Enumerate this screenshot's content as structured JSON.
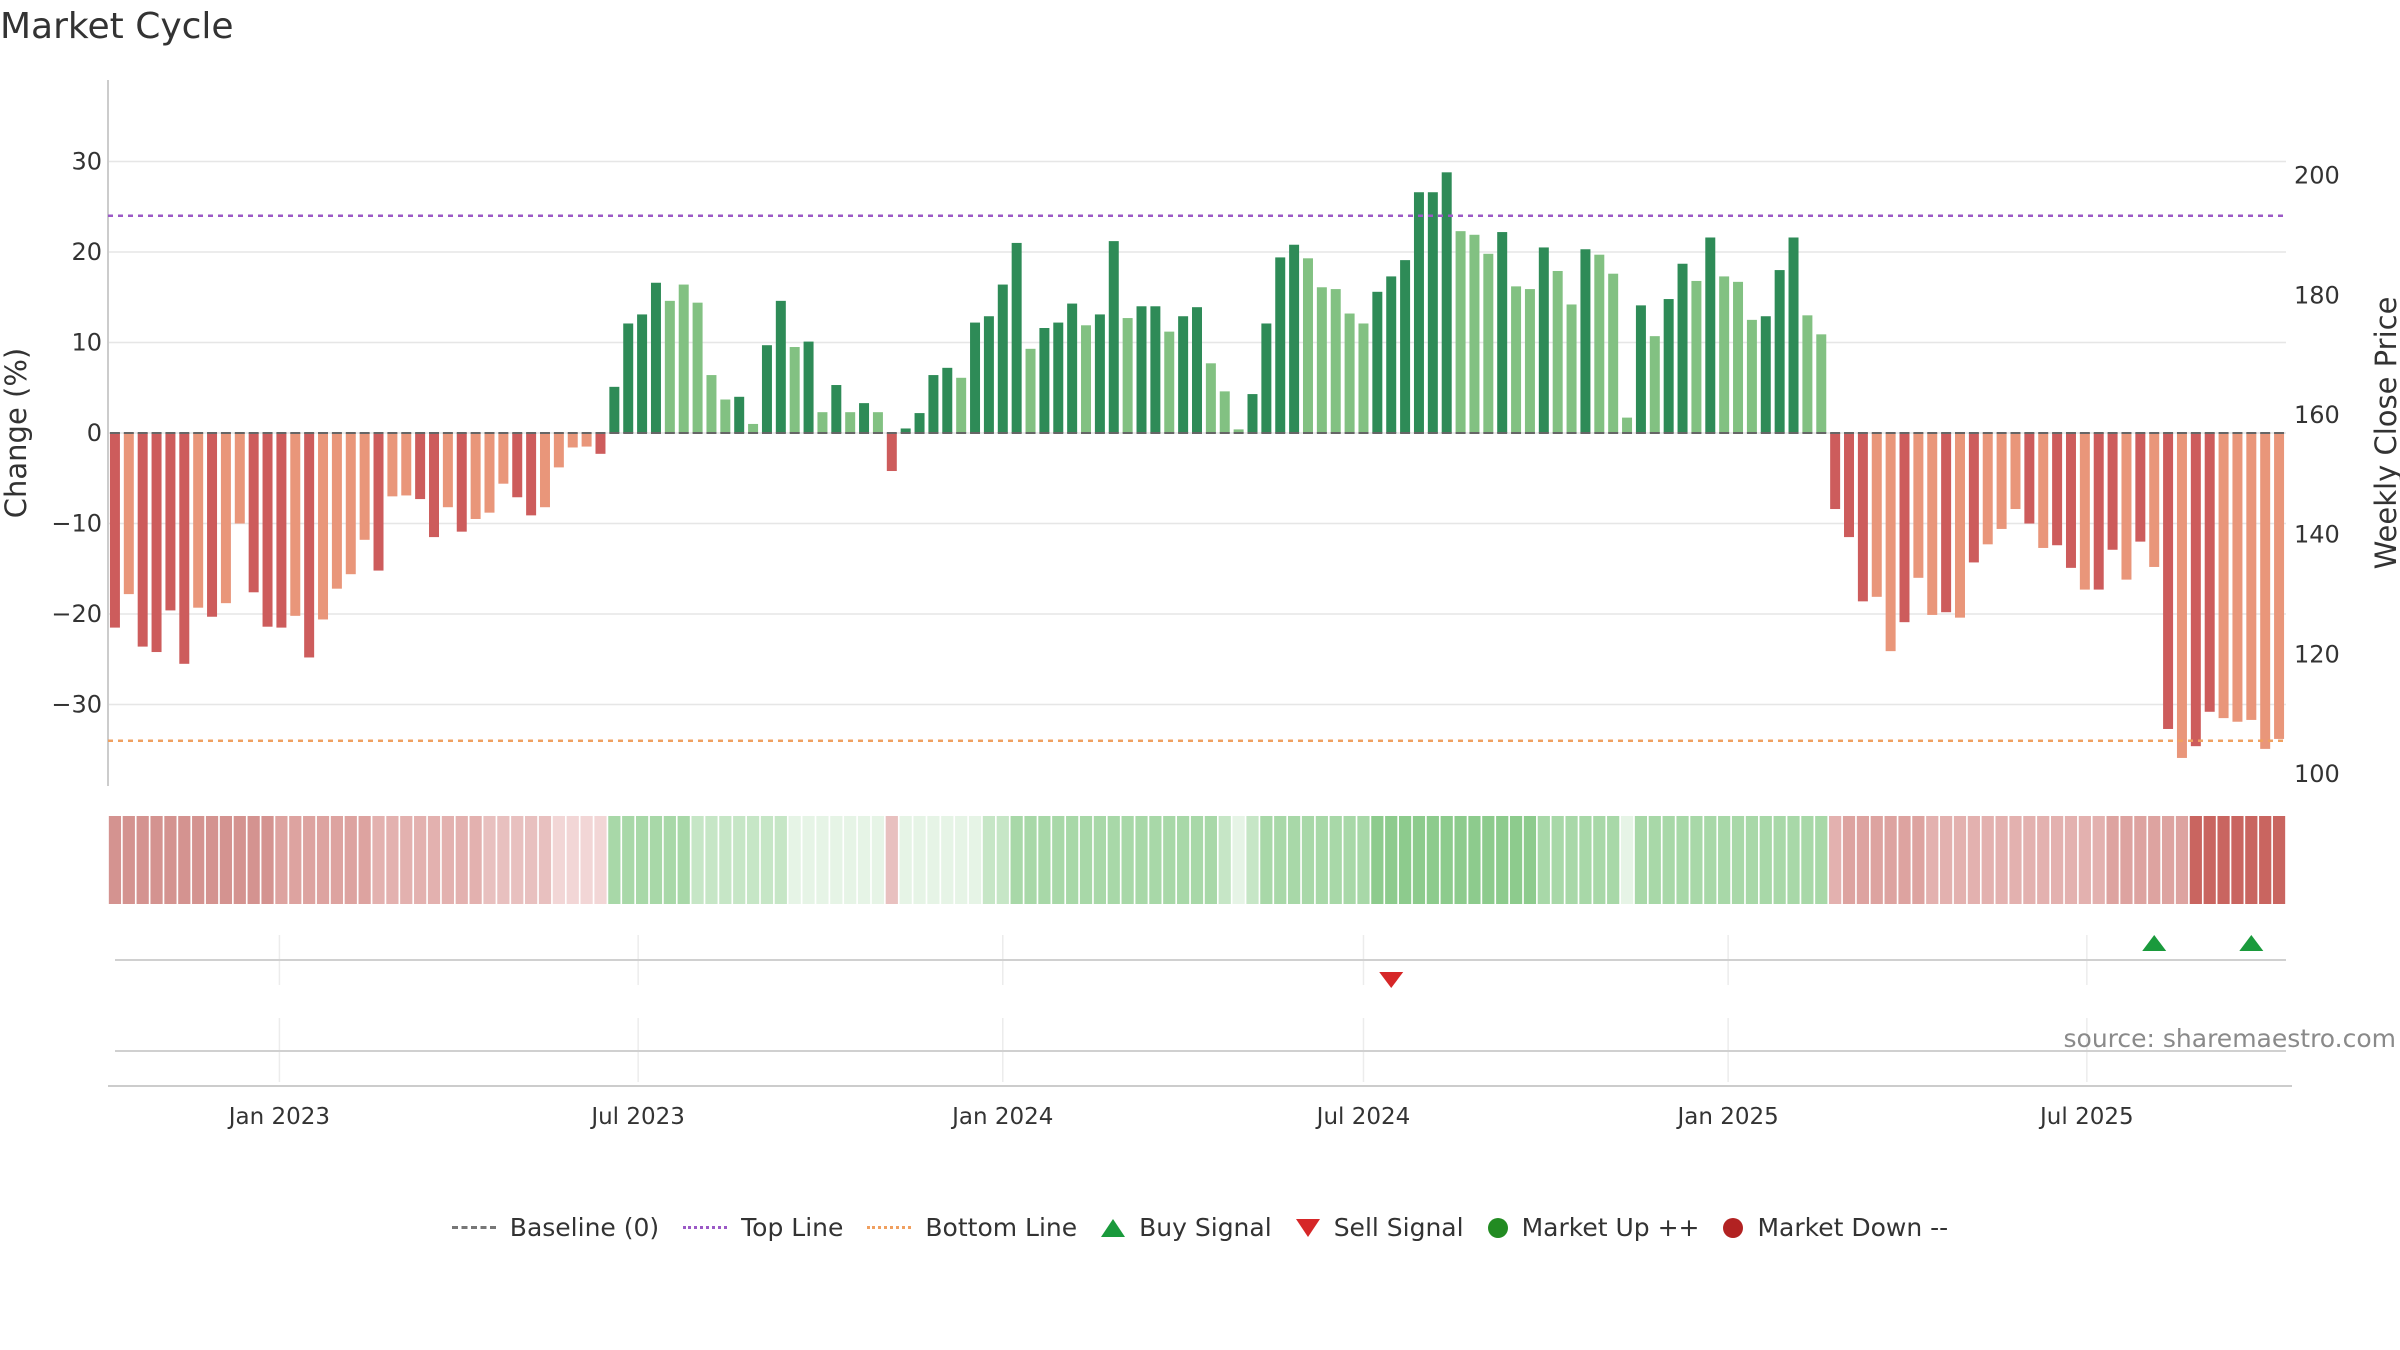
{
  "title": "Market Cycle",
  "source": "source: sharemaestro.com",
  "legend": [
    {
      "label": "Baseline (0)",
      "icon": "dash-gray",
      "name": "legend-baseline"
    },
    {
      "label": "Top Line",
      "icon": "dotted-purple",
      "name": "legend-top-line"
    },
    {
      "label": "Bottom Line",
      "icon": "dotted-orange",
      "name": "legend-bottom-line"
    },
    {
      "label": "Buy Signal",
      "icon": "triangle-up-green",
      "name": "legend-buy-signal"
    },
    {
      "label": "Sell Signal",
      "icon": "triangle-down-red",
      "name": "legend-sell-signal"
    },
    {
      "label": "Market Up ++",
      "icon": "circle-green",
      "name": "legend-market-up"
    },
    {
      "label": "Market Down --",
      "icon": "circle-red",
      "name": "legend-market-down"
    }
  ],
  "colors": {
    "dark_green": "#2e8b57",
    "light_green": "#82c182",
    "dark_red": "#cd5c5c",
    "light_red": "#e9967a",
    "top_line": "#9b59c6",
    "bottom_line": "#f0a060",
    "buy": "#1a9a3c",
    "sell": "#d62728",
    "grid": "#e6e6e6",
    "axis": "#cccccc"
  },
  "chart_data": {
    "type": "bar",
    "ylabel": "Change (%)",
    "ylabel_right": "Weekly Close Price",
    "ylim": [
      -39,
      39
    ],
    "yticks": [
      30,
      20,
      10,
      0,
      -10,
      -20,
      -30
    ],
    "ytick_labels": [
      "30",
      "20",
      "10",
      "0",
      "−10",
      "−20",
      "−30"
    ],
    "ylim_right": [
      98,
      216
    ],
    "yticks_right": [
      200,
      180,
      160,
      140,
      120,
      100
    ],
    "x_start": "2022-10-10",
    "x_step_days": 7,
    "xticks": [
      "Jan 2023",
      "Jul 2023",
      "Jan 2024",
      "Jul 2024",
      "Jan 2025",
      "Jul 2025"
    ],
    "xtick_dates": [
      "2023-01-01",
      "2023-07-01",
      "2024-01-01",
      "2024-07-01",
      "2025-01-01",
      "2025-07-01"
    ],
    "top_line": 24,
    "bottom_line": -34,
    "grid": true,
    "legend_position": "bottom",
    "values": [
      -21.5,
      -17.8,
      -23.6,
      -24.2,
      -19.6,
      -25.5,
      -19.3,
      -20.3,
      -18.8,
      -10.0,
      -17.6,
      -21.4,
      -21.5,
      -20.2,
      -24.8,
      -20.6,
      -17.2,
      -15.6,
      -11.8,
      -15.2,
      -7.0,
      -6.9,
      -7.3,
      -11.5,
      -8.2,
      -10.9,
      -9.5,
      -8.8,
      -5.6,
      -7.1,
      -9.1,
      -8.2,
      -3.8,
      -1.6,
      -1.5,
      -2.3,
      5.1,
      12.1,
      13.1,
      16.6,
      14.6,
      16.4,
      14.4,
      6.4,
      3.7,
      4.0,
      1.0,
      9.7,
      14.6,
      9.5,
      10.1,
      2.3,
      5.3,
      2.3,
      3.3,
      2.3,
      -4.2,
      0.5,
      2.2,
      6.4,
      7.2,
      6.1,
      12.2,
      12.9,
      16.4,
      21.0,
      9.3,
      11.6,
      12.2,
      14.3,
      11.9,
      13.1,
      21.2,
      12.7,
      14.0,
      14.0,
      11.2,
      12.9,
      13.9,
      7.7,
      4.6,
      0.4,
      4.3,
      12.1,
      19.4,
      20.8,
      19.3,
      16.1,
      15.9,
      13.2,
      12.1,
      15.6,
      17.3,
      19.1,
      26.6,
      26.6,
      28.8,
      22.3,
      21.9,
      19.8,
      22.2,
      16.2,
      15.9,
      20.5,
      17.9,
      14.2,
      20.3,
      19.7,
      17.6,
      1.7,
      14.1,
      10.7,
      14.8,
      18.7,
      16.8,
      21.6,
      17.3,
      16.7,
      12.5,
      12.9,
      18.0,
      21.6,
      13.0,
      10.9,
      -8.4,
      -11.5,
      -18.6,
      -18.1,
      -24.1,
      -20.9,
      -16.0,
      -20.1,
      -19.8,
      -20.4,
      -14.3,
      -12.3,
      -10.6,
      -8.4,
      -10.0,
      -12.7,
      -12.4,
      -14.9,
      -17.3,
      -17.3,
      -12.9,
      -16.2,
      -12.0,
      -14.8,
      -32.7,
      -35.9,
      -34.6,
      -30.8,
      -31.5,
      -31.9,
      -31.7,
      -34.9,
      -33.8
    ],
    "shades": [
      2,
      1,
      2,
      2,
      2,
      2,
      1,
      2,
      1,
      1,
      2,
      2,
      2,
      1,
      2,
      1,
      1,
      1,
      1,
      2,
      1,
      1,
      2,
      2,
      1,
      2,
      1,
      1,
      1,
      2,
      2,
      1,
      1,
      1,
      1,
      2,
      2,
      2,
      2,
      2,
      1,
      1,
      1,
      1,
      1,
      2,
      1,
      2,
      2,
      1,
      2,
      1,
      2,
      1,
      2,
      1,
      2,
      2,
      2,
      2,
      2,
      1,
      2,
      2,
      2,
      2,
      1,
      2,
      2,
      2,
      1,
      2,
      2,
      1,
      2,
      2,
      1,
      2,
      2,
      1,
      1,
      1,
      2,
      2,
      2,
      2,
      1,
      1,
      1,
      1,
      1,
      2,
      2,
      2,
      2,
      2,
      2,
      1,
      1,
      1,
      2,
      1,
      1,
      2,
      1,
      1,
      2,
      1,
      1,
      1,
      2,
      1,
      2,
      2,
      1,
      2,
      1,
      1,
      1,
      2,
      2,
      2,
      1,
      1,
      2,
      2,
      2,
      1,
      1,
      2,
      1,
      1,
      2,
      1,
      2,
      1,
      1,
      1,
      2,
      1,
      2,
      2,
      1,
      2,
      2,
      1,
      2,
      1,
      2,
      1,
      2,
      2,
      1,
      1,
      1,
      1,
      1,
      2,
      1
    ],
    "heat_intensity": [
      5,
      5,
      5,
      5,
      5,
      5,
      5,
      5,
      5,
      5,
      5,
      5,
      4,
      4,
      4,
      4,
      4,
      4,
      4,
      3,
      3,
      3,
      3,
      3,
      3,
      3,
      3,
      2,
      2,
      2,
      2,
      2,
      1,
      1,
      1,
      1,
      3,
      3,
      3,
      3,
      3,
      3,
      2,
      2,
      2,
      2,
      2,
      2,
      2,
      1,
      1,
      1,
      1,
      1,
      1,
      1,
      2,
      1,
      1,
      1,
      1,
      1,
      1,
      2,
      2,
      3,
      3,
      3,
      3,
      3,
      3,
      3,
      3,
      3,
      3,
      3,
      3,
      3,
      3,
      3,
      2,
      1,
      2,
      3,
      3,
      3,
      3,
      3,
      3,
      3,
      3,
      4,
      4,
      4,
      4,
      4,
      4,
      4,
      4,
      4,
      4,
      4,
      4,
      3,
      3,
      3,
      3,
      3,
      3,
      1,
      3,
      3,
      3,
      3,
      3,
      3,
      3,
      3,
      3,
      3,
      3,
      3,
      3,
      3,
      3,
      4,
      4,
      4,
      4,
      4,
      4,
      3,
      3,
      3,
      3,
      3,
      3,
      3,
      3,
      3,
      3,
      3,
      3,
      3,
      4,
      4,
      4,
      4,
      4,
      4,
      6,
      6,
      6,
      6,
      6,
      6,
      6,
      6,
      6
    ],
    "buy_signals": [
      "2025-08-04",
      "2025-09-22"
    ],
    "sell_signals": [
      "2024-07-15"
    ]
  }
}
